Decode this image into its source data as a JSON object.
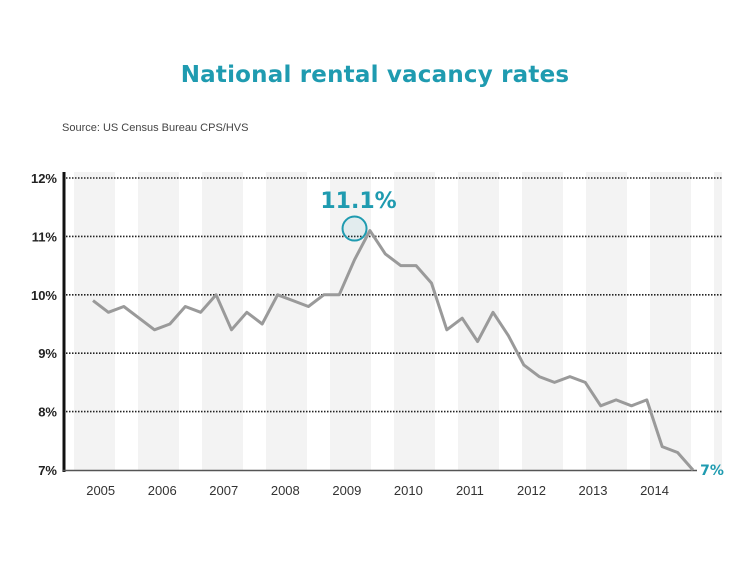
{
  "chart_data": {
    "type": "line",
    "title": "National rental vacancy rates",
    "subtitle": "Source: US Census Bureau CPS/HVS",
    "xlabel": "",
    "ylabel": "",
    "ylim": [
      7,
      12
    ],
    "y_ticks": [
      "12%",
      "11%",
      "10%",
      "9%",
      "8%",
      "7%"
    ],
    "y_tick_values": [
      12,
      11,
      10,
      9,
      8,
      7
    ],
    "x_tick_labels": [
      "2005",
      "2006",
      "2007",
      "2008",
      "2009",
      "2010",
      "2011",
      "2012",
      "2013",
      "2014"
    ],
    "grid": "horizontal dotted",
    "colors": {
      "title": "#1f9bb0",
      "line": "#9a9a9a",
      "annotation": "#1f9bb0",
      "stripe": "#f3f3f3"
    },
    "series": [
      {
        "x": [
          2005.0,
          2005.25,
          2005.5,
          2005.75,
          2006.0,
          2006.25,
          2006.5,
          2006.75,
          2007.0,
          2007.25,
          2007.5,
          2007.75,
          2008.0,
          2008.25,
          2008.5,
          2008.75,
          2009.0,
          2009.25,
          2009.5,
          2009.75,
          2010.0,
          2010.25,
          2010.5,
          2010.75,
          2011.0,
          2011.25,
          2011.5,
          2011.75,
          2012.0,
          2012.25,
          2012.5,
          2012.75,
          2013.0,
          2013.25,
          2013.5,
          2013.75,
          2014.0,
          2014.25,
          2014.5,
          2014.75
        ],
        "values": [
          9.9,
          9.7,
          9.8,
          9.6,
          9.4,
          9.5,
          9.8,
          9.7,
          10.0,
          9.4,
          9.7,
          9.5,
          10.0,
          9.9,
          9.8,
          10.0,
          10.0,
          10.6,
          11.1,
          10.7,
          10.5,
          10.5,
          10.2,
          9.4,
          9.6,
          9.2,
          9.7,
          9.3,
          8.8,
          8.6,
          8.5,
          8.6,
          8.5,
          8.1,
          8.2,
          8.1,
          8.2,
          7.4,
          7.3,
          7.0
        ]
      }
    ],
    "annotations": [
      {
        "text": "11.1%",
        "x": 2009.5,
        "y": 11.1
      },
      {
        "text": "7%",
        "x": 2014.75,
        "y": 7.0
      }
    ]
  }
}
